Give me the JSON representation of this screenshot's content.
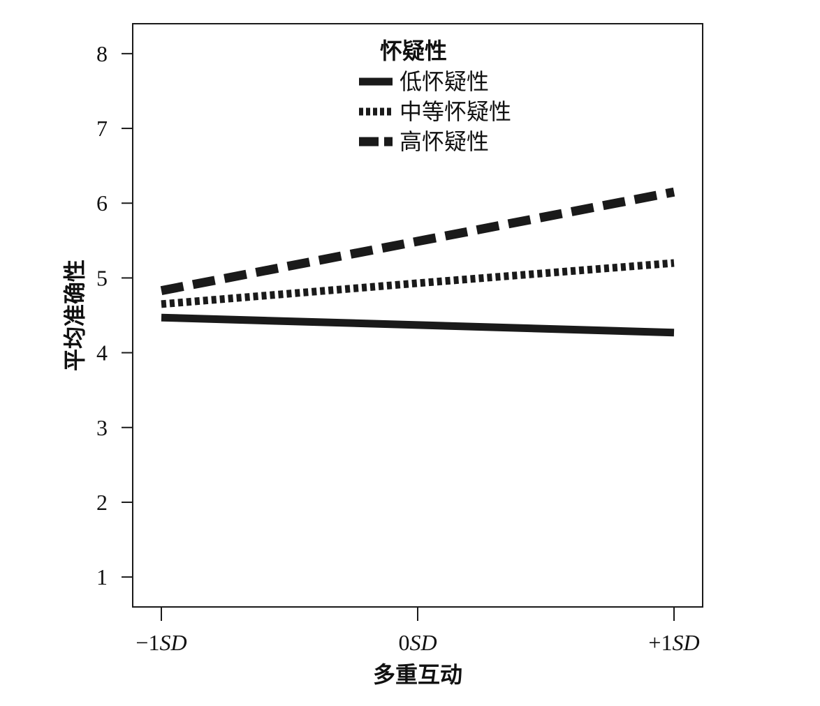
{
  "chart_data": {
    "type": "line",
    "x": [
      "−1",
      "0",
      "+1"
    ],
    "x_tick_labels": [
      {
        "num": "−1",
        "unit": "SD"
      },
      {
        "num": "0",
        "unit": "SD"
      },
      {
        "num": "+1",
        "unit": "SD"
      }
    ],
    "series": [
      {
        "name": "低怀疑性",
        "values": [
          4.47,
          4.37,
          4.27
        ],
        "style": "solid"
      },
      {
        "name": "中等怀疑性",
        "values": [
          4.65,
          4.93,
          5.2
        ],
        "style": "dotted"
      },
      {
        "name": "高怀疑性",
        "values": [
          4.83,
          5.49,
          6.15
        ],
        "style": "dashed"
      }
    ],
    "legend_title": "怀疑性",
    "legend_position": "top-center",
    "xlabel": "多重互动",
    "ylabel": "平均准确性",
    "ylim": [
      0.6,
      8.4
    ],
    "yticks": [
      1,
      2,
      3,
      4,
      5,
      6,
      7,
      8
    ],
    "grid": false,
    "line_color": "#1a1a1a"
  }
}
